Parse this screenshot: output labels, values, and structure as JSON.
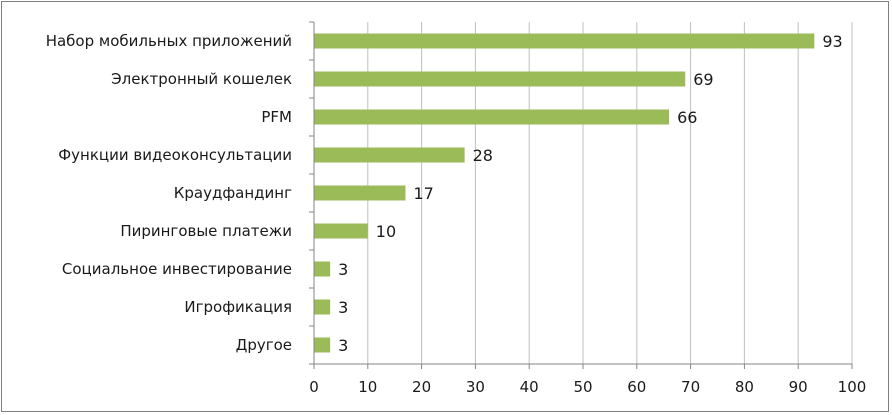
{
  "chart_data": {
    "type": "bar",
    "orientation": "horizontal",
    "categories": [
      "Набор мобильных приложений",
      "Электронный кошелек",
      "PFM",
      "Функции видеоконсультации",
      "Краудфандинг",
      "Пиринговые платежи",
      "Социальное инвестирование",
      "Игрофикация",
      "Другое"
    ],
    "values": [
      93,
      69,
      66,
      28,
      17,
      10,
      3,
      3,
      3
    ],
    "data_labels": [
      "93",
      "69",
      "66",
      "28",
      "17",
      "10",
      "3",
      "3",
      "3"
    ],
    "title": "",
    "xlabel": "",
    "ylabel": "",
    "xlim": [
      0,
      100
    ],
    "x_ticks": [
      0,
      10,
      20,
      30,
      40,
      50,
      60,
      70,
      80,
      90,
      100
    ],
    "x_tick_labels": [
      "0",
      "10",
      "20",
      "30",
      "40",
      "50",
      "60",
      "70",
      "80",
      "90",
      "100"
    ],
    "grid": "vertical",
    "legend": "none",
    "colors": {
      "bar": "#9bbb59",
      "grid": "#bfbfbf",
      "axis": "#868686",
      "border": "#7f7f7f"
    }
  }
}
